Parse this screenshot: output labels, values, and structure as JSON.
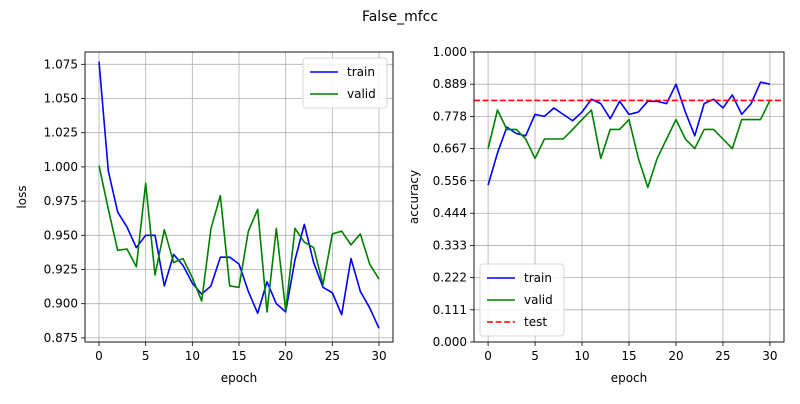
{
  "figure": {
    "title": "False_mfcc"
  },
  "chart_data": [
    {
      "type": "line",
      "xlabel": "epoch",
      "ylabel": "loss",
      "xlim": [
        -1.5,
        31.5
      ],
      "ylim": [
        0.872,
        1.084
      ],
      "xticks": [
        0,
        5,
        10,
        15,
        20,
        25,
        30
      ],
      "yticks": [
        0.875,
        0.9,
        0.925,
        0.95,
        0.975,
        1.0,
        1.025,
        1.05,
        1.075
      ],
      "ytick_labels": [
        "0.875",
        "0.900",
        "0.925",
        "0.950",
        "0.975",
        "1.000",
        "1.025",
        "1.050",
        "1.075"
      ],
      "grid": true,
      "legend_position": "top-right",
      "series": [
        {
          "name": "train",
          "color": "#0000ff",
          "dash": "solid",
          "x": [
            0,
            1,
            2,
            3,
            4,
            5,
            6,
            7,
            8,
            9,
            10,
            11,
            12,
            13,
            14,
            15,
            16,
            17,
            18,
            19,
            20,
            21,
            22,
            23,
            24,
            25,
            26,
            27,
            28,
            29,
            30
          ],
          "y": [
            1.077,
            0.997,
            0.967,
            0.956,
            0.941,
            0.95,
            0.95,
            0.913,
            0.936,
            0.928,
            0.915,
            0.907,
            0.913,
            0.934,
            0.934,
            0.929,
            0.909,
            0.893,
            0.916,
            0.9,
            0.894,
            0.932,
            0.958,
            0.93,
            0.912,
            0.908,
            0.892,
            0.933,
            0.909,
            0.897,
            0.882
          ]
        },
        {
          "name": "valid",
          "color": "#008000",
          "dash": "solid",
          "x": [
            0,
            1,
            2,
            3,
            4,
            5,
            6,
            7,
            8,
            9,
            10,
            11,
            12,
            13,
            14,
            15,
            16,
            17,
            18,
            19,
            20,
            21,
            22,
            23,
            24,
            25,
            26,
            27,
            28,
            29,
            30
          ],
          "y": [
            1.001,
            0.969,
            0.939,
            0.94,
            0.927,
            0.988,
            0.921,
            0.954,
            0.93,
            0.933,
            0.919,
            0.902,
            0.955,
            0.979,
            0.913,
            0.912,
            0.953,
            0.969,
            0.894,
            0.955,
            0.895,
            0.955,
            0.945,
            0.941,
            0.914,
            0.951,
            0.953,
            0.943,
            0.951,
            0.929,
            0.918
          ]
        }
      ]
    },
    {
      "type": "line",
      "xlabel": "epoch",
      "ylabel": "accuracy",
      "xlim": [
        -1.5,
        31.5
      ],
      "ylim": [
        0.0,
        1.0
      ],
      "xticks": [
        0,
        5,
        10,
        15,
        20,
        25,
        30
      ],
      "yticks": [
        0.0,
        0.111,
        0.222,
        0.333,
        0.444,
        0.556,
        0.667,
        0.778,
        0.889,
        1.0
      ],
      "ytick_labels": [
        "0.000",
        "0.111",
        "0.222",
        "0.333",
        "0.444",
        "0.556",
        "0.667",
        "0.778",
        "0.889",
        "1.000"
      ],
      "grid": true,
      "legend_position": "bottom-left",
      "series": [
        {
          "name": "train",
          "color": "#0000ff",
          "dash": "solid",
          "x": [
            0,
            1,
            2,
            3,
            4,
            5,
            6,
            7,
            8,
            9,
            10,
            11,
            12,
            13,
            14,
            15,
            16,
            17,
            18,
            19,
            20,
            21,
            22,
            23,
            24,
            25,
            26,
            27,
            28,
            29,
            30
          ],
          "y": [
            0.541,
            0.652,
            0.741,
            0.719,
            0.711,
            0.785,
            0.778,
            0.807,
            0.785,
            0.763,
            0.793,
            0.837,
            0.822,
            0.77,
            0.83,
            0.785,
            0.793,
            0.83,
            0.83,
            0.822,
            0.889,
            0.793,
            0.711,
            0.822,
            0.837,
            0.807,
            0.852,
            0.785,
            0.822,
            0.896,
            0.889
          ]
        },
        {
          "name": "valid",
          "color": "#008000",
          "dash": "solid",
          "x": [
            0,
            1,
            2,
            3,
            4,
            5,
            6,
            7,
            8,
            9,
            10,
            11,
            12,
            13,
            14,
            15,
            16,
            17,
            18,
            19,
            20,
            21,
            22,
            23,
            24,
            25,
            26,
            27,
            28,
            29,
            30
          ],
          "y": [
            0.667,
            0.8,
            0.733,
            0.733,
            0.7,
            0.633,
            0.7,
            0.7,
            0.7,
            0.733,
            0.767,
            0.8,
            0.633,
            0.733,
            0.733,
            0.767,
            0.633,
            0.533,
            0.633,
            0.7,
            0.767,
            0.7,
            0.667,
            0.733,
            0.733,
            0.7,
            0.667,
            0.767,
            0.767,
            0.767,
            0.833
          ]
        },
        {
          "name": "test",
          "color": "#ff0000",
          "dash": "dashed",
          "x": [
            -1.5,
            31.5
          ],
          "y": [
            0.833,
            0.833
          ]
        }
      ]
    }
  ]
}
